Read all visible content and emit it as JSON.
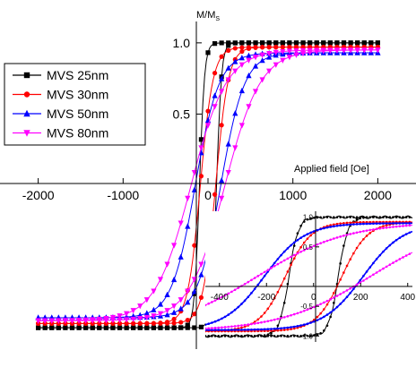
{
  "chart_data": [
    {
      "type": "line",
      "panel": "main",
      "y_axis_label": "M/M",
      "y_axis_label_sub": "S",
      "x_axis_label": "Applied field [Oe]",
      "xlim": [
        -2450,
        2450
      ],
      "ylim": [
        -1.15,
        1.15
      ],
      "x_ticks": [
        -2000,
        -1000,
        0,
        1000,
        2000
      ],
      "x_tick_labels": [
        "-2000",
        "-1000",
        "0",
        "1000",
        "2000"
      ],
      "y_ticks": [
        0.5,
        1.0
      ],
      "y_tick_labels": [
        "0.5",
        "1.0"
      ],
      "legend_position": "upper-left",
      "grid": false,
      "series": [
        {
          "name": "MVS 25nm",
          "color": "#000000",
          "marker": "square",
          "hc": 100,
          "width": 60,
          "ms": 1.0
        },
        {
          "name": "MVS 30nm",
          "color": "#ff0000",
          "marker": "circle",
          "hc": 90,
          "width": 150,
          "ms": 0.97
        },
        {
          "name": "MVS 50nm",
          "color": "#0000ff",
          "marker": "triangle-up",
          "hc": 150,
          "width": 280,
          "ms": 0.93
        },
        {
          "name": "MVS 80nm",
          "color": "#ff00ff",
          "marker": "triangle-down",
          "hc": 200,
          "width": 420,
          "ms": 0.95
        }
      ]
    },
    {
      "type": "line",
      "panel": "inset",
      "xlim": [
        -460,
        420
      ],
      "ylim": [
        -1.1,
        1.1
      ],
      "x_ticks": [
        -400,
        -200,
        0,
        200,
        400
      ],
      "x_tick_labels": [
        "-400",
        "-200",
        "0",
        "200",
        "400"
      ],
      "y_ticks": [
        -1.0,
        -0.5,
        0.5,
        1.0
      ],
      "y_tick_labels": [
        "-1.0",
        "-0.5",
        "0.5",
        "1.0"
      ],
      "series": [
        {
          "name": "MVS 25nm",
          "color": "#000000",
          "hc": 105,
          "width": 40,
          "ms": 1.0
        },
        {
          "name": "MVS 30nm",
          "color": "#ff0000",
          "hc": 120,
          "width": 110,
          "ms": 0.92
        },
        {
          "name": "MVS 50nm",
          "color": "#0000ff",
          "hc": 210,
          "width": 170,
          "ms": 0.9
        },
        {
          "name": "MVS 80nm",
          "color": "#ff00ff",
          "hc": 240,
          "width": 380,
          "ms": 0.92
        }
      ]
    }
  ]
}
